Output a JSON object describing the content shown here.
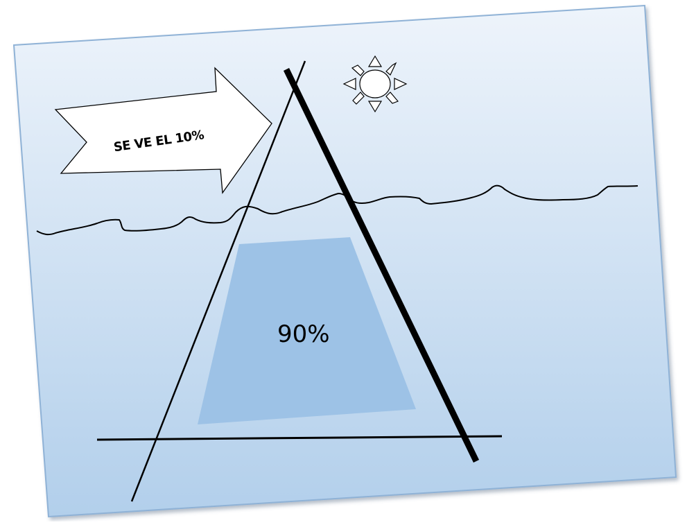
{
  "labels": {
    "visible": "SE VE EL 10%",
    "submerged": "90%"
  },
  "colors": {
    "background_top": "#eef4fb",
    "background_bottom": "#b2cfeb",
    "card_border": "#8fb2d6",
    "underwater_fill": "#9dc2e6",
    "stroke": "#000000",
    "arrow_fill": "#ffffff"
  },
  "icons": {
    "sun": "sun-icon",
    "arrow": "right-arrow-icon"
  }
}
